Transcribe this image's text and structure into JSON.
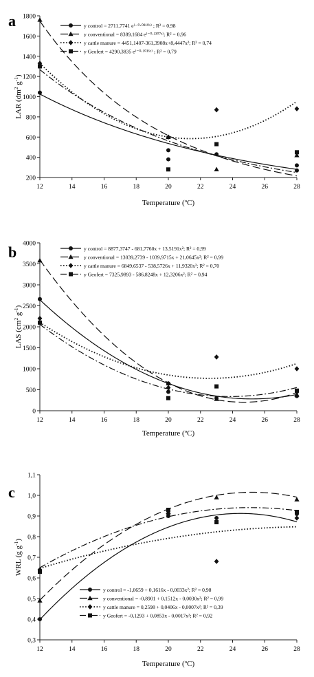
{
  "chart_data": [
    {
      "panel": "a",
      "type": "scatter",
      "ylabel": "LAR (dm² g⁻¹)",
      "ylabel_main": "LAR (dm",
      "ylabel_sup1": "2",
      "ylabel_mid": " g",
      "ylabel_sup2": "-1",
      "ylabel_end": ")",
      "xlabel": "Temperature (ºC)",
      "xlim": [
        12,
        28
      ],
      "ylim": [
        200,
        1800
      ],
      "xticks": [
        12,
        14,
        16,
        18,
        20,
        22,
        24,
        26,
        28
      ],
      "yticks": [
        200,
        400,
        600,
        800,
        1000,
        1200,
        1400,
        1600,
        1800
      ],
      "legend": [
        "y control = 2711,7741 e⁽⁻⁰⋅⁰⁸¹⁰ˣ⁾ ; R² = 0,98",
        "y conventional = 8389,1684 e⁽⁻⁰⋅¹³⁰⁷ˣ⁾; R² = 0,96",
        "y cattle manure = 4451,1407-361,3908x+8,4447x²; R² = 0,74",
        "y Geofert = 4290,3835 e⁽⁻⁰⋅¹⁰¹⁶ˣ⁾ ; R² = 0,79"
      ],
      "series": [
        {
          "marker": "circle",
          "line": "solid",
          "x": [
            12,
            20,
            20,
            23,
            28,
            28
          ],
          "y": [
            1040,
            470,
            380,
            430,
            320,
            270
          ]
        },
        {
          "marker": "triangle",
          "line": "dash",
          "x": [
            12,
            20,
            23,
            28
          ],
          "y": [
            1760,
            600,
            280,
            420
          ]
        },
        {
          "marker": "diamond",
          "line": "dot",
          "x": [
            12,
            20,
            23,
            28
          ],
          "y": [
            1330,
            600,
            870,
            880
          ]
        },
        {
          "marker": "square",
          "line": "dashdot",
          "x": [
            12,
            20,
            23,
            28
          ],
          "y": [
            1300,
            280,
            530,
            450
          ]
        }
      ]
    },
    {
      "panel": "b",
      "type": "scatter",
      "ylabel": "LAS (cm² g⁻¹)",
      "ylabel_main": "LAS (cm",
      "ylabel_sup1": "2",
      "ylabel_mid": " g",
      "ylabel_sup2": "-1",
      "ylabel_end": ")",
      "xlabel": "Temperature (ºC)",
      "xlim": [
        12,
        28
      ],
      "ylim": [
        0,
        4000
      ],
      "xticks": [
        12,
        14,
        16,
        18,
        20,
        22,
        24,
        26,
        28
      ],
      "yticks": [
        0,
        500,
        1000,
        1500,
        2000,
        2500,
        3000,
        3500,
        4000
      ],
      "legend": [
        "y control = 8877,3747 - 681,7760x + 13,5191x²; R² = 0,99",
        "y conventional = 13039,2739 - 1039,9715x + 21,0645x²; R² = 0,99",
        "y cattle manure = 6849,6537 - 538,5726x + 11,9320x²; R² = 0,70",
        "y Geofert = 7325,9893 - 586,8248x + 12,3206x²; R² = 0,94"
      ],
      "series": [
        {
          "marker": "circle",
          "line": "solid",
          "x": [
            12,
            20,
            20,
            23,
            28,
            28
          ],
          "y": [
            2660,
            650,
            450,
            300,
            350,
            450
          ]
        },
        {
          "marker": "triangle",
          "line": "dash",
          "x": [
            12,
            20,
            23,
            28
          ],
          "y": [
            3580,
            650,
            280,
            380
          ]
        },
        {
          "marker": "diamond",
          "line": "dot",
          "x": [
            12,
            20,
            23,
            28
          ],
          "y": [
            2200,
            550,
            1280,
            1000
          ]
        },
        {
          "marker": "square",
          "line": "dashdot",
          "x": [
            12,
            20,
            23,
            28
          ],
          "y": [
            2100,
            300,
            580,
            480
          ]
        }
      ]
    },
    {
      "panel": "c",
      "type": "scatter",
      "ylabel": "WRL (g g⁻¹)",
      "ylabel_main": "WRL (g g",
      "ylabel_sup1": "",
      "ylabel_mid": "",
      "ylabel_sup2": "-1",
      "ylabel_end": ")",
      "xlabel": "Temperature (ºC)",
      "xlim": [
        12,
        28
      ],
      "ylim": [
        0.3,
        1.1
      ],
      "xticks": [
        12,
        14,
        16,
        18,
        20,
        22,
        24,
        26,
        28
      ],
      "yticks": [
        "0,3",
        "0,4",
        "0,5",
        "0,6",
        "0,7",
        "0,8",
        "0,9",
        "1,0",
        "1,1"
      ],
      "legend": [
        "y control = -1,0659 + 0,1616x - 0,0033x²; R² = 0,98",
        "y conventional = -0,8901 + 0,1512x - 0,0030x²; R² = 0,99",
        "y cattle manure = 0,2598 + 0,0406x - 0,0007x²; R² = 0,39",
        "y Geofert = -0,1293 + 0,0853x - 0,0017x²; R² = 0,92"
      ],
      "series": [
        {
          "marker": "circle",
          "line": "solid",
          "x": [
            12,
            20,
            23,
            28
          ],
          "y": [
            0.4,
            0.9,
            0.89,
            0.91
          ]
        },
        {
          "marker": "triangle",
          "line": "dash",
          "x": [
            12,
            20,
            23,
            28
          ],
          "y": [
            0.49,
            0.92,
            0.99,
            0.98
          ]
        },
        {
          "marker": "diamond",
          "line": "dot",
          "x": [
            12,
            20,
            23,
            28
          ],
          "y": [
            0.64,
            0.91,
            0.68,
            0.89
          ]
        },
        {
          "marker": "square",
          "line": "dashdot",
          "x": [
            12,
            20,
            23,
            28
          ],
          "y": [
            0.63,
            0.93,
            0.87,
            0.92
          ]
        }
      ]
    }
  ]
}
